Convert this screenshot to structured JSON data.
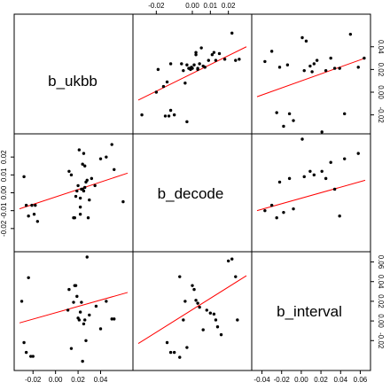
{
  "chart_data": {
    "type": "scatter",
    "variables": [
      "b_ukbb",
      "b_decode",
      "b_interval"
    ],
    "fit_line_color": "#ff0000",
    "point_color": "#000000",
    "axes": {
      "b_ukbb": {
        "ticks": [
          -0.02,
          0.0,
          0.02,
          0.04
        ],
        "tick_labels": [
          "-0.02",
          "0.00",
          "0.02",
          "0.04"
        ],
        "range": [
          -0.032,
          0.064
        ]
      },
      "b_decode": {
        "ticks": [
          -0.02,
          -0.01,
          0.0,
          0.01,
          0.02
        ],
        "tick_labels": [
          "-0.02",
          "0.00",
          "0.01",
          "0.02"
        ],
        "tick_label_values": [
          -0.02,
          0.0,
          0.01,
          0.02
        ],
        "left_tick_values": [
          -0.01,
          0.01
        ],
        "left_tick_labels": [
          "-0.01",
          "0.01"
        ],
        "left_tick_values_full": [
          -0.01,
          0.0,
          0.01,
          0.02
        ],
        "left_tick_labels_full": [
          "-0.01",
          "0.00",
          "0.01",
          "0.02"
        ],
        "range": [
          -0.03,
          0.03
        ]
      },
      "b_interval": {
        "ticks": [
          -0.04,
          -0.02,
          0.0,
          0.02,
          0.04,
          0.06
        ],
        "tick_labels": [
          "-0.04",
          "-0.02",
          "0.00",
          "0.02",
          "0.04",
          "0.06"
        ],
        "range": [
          -0.045,
          0.065
        ]
      }
    },
    "top_axis": {
      "ticks": [
        -0.02,
        0.0,
        0.01,
        0.02
      ],
      "tick_labels": [
        "-0.02",
        "0.00",
        "0.01",
        "0.02"
      ]
    },
    "right_axis_top": {
      "ticks": [
        -0.02,
        0.0,
        0.02,
        0.04
      ],
      "tick_labels": [
        "-0.02",
        "0.00",
        "0.02",
        "0.04"
      ]
    },
    "left_axis_middle": {
      "ticks": [
        -0.02,
        -0.01,
        0.0,
        0.01,
        0.02
      ],
      "tick_labels": [
        "-0.02",
        "-0.01",
        "0.00",
        "0.01",
        "0.02"
      ]
    },
    "bottom_axis_left": {
      "ticks": [
        -0.02,
        0.0,
        0.02,
        0.04
      ],
      "tick_labels": [
        "-0.02",
        "0.00",
        "0.02",
        "0.04"
      ]
    },
    "bottom_axis_right": {
      "ticks": [
        -0.04,
        -0.02,
        0.0,
        0.02,
        0.04,
        0.06
      ],
      "tick_labels": [
        "-0.04",
        "-0.02",
        "0.00",
        "0.02",
        "0.04",
        "0.06"
      ]
    },
    "right_axis_bottom": {
      "ticks": [
        -0.02,
        0.0,
        0.02,
        0.04,
        0.06
      ],
      "tick_labels": [
        "-0.02",
        "0.00",
        "0.02",
        "0.04",
        "0.06"
      ]
    },
    "panels": [
      {
        "row": 0,
        "col": 1,
        "x_var": "b_decode",
        "y_var": "b_ukbb",
        "x": [
          -0.028,
          -0.02,
          -0.019,
          -0.016,
          -0.014,
          -0.015,
          -0.013,
          -0.012,
          -0.012,
          -0.01,
          -0.006,
          -0.005,
          -0.004,
          -0.003,
          -0.002,
          -0.0015,
          -0.001,
          -0.0005,
          0.0,
          0.001,
          0.002,
          0.002,
          0.003,
          0.003,
          0.004,
          0.005,
          0.006,
          0.007,
          0.009,
          0.011,
          0.012,
          0.013,
          0.015,
          0.018,
          0.022,
          0.024,
          0.026,
          -0.003
        ],
        "y": [
          -0.02,
          0.0,
          0.02,
          0.005,
          0.009,
          -0.021,
          -0.021,
          0.025,
          -0.016,
          -0.02,
          0.025,
          0.019,
          0.008,
          0.024,
          0.021,
          0.021,
          0.02,
          0.022,
          0.021,
          0.024,
          0.033,
          0.035,
          0.021,
          0.02,
          0.025,
          0.039,
          0.023,
          0.022,
          0.028,
          0.033,
          0.035,
          0.028,
          0.034,
          0.029,
          0.052,
          0.028,
          0.029,
          -0.026
        ],
        "fit": {
          "x": [
            -0.03,
            0.03
          ],
          "y": [
            -0.007,
            0.04
          ]
        }
      },
      {
        "row": 0,
        "col": 2,
        "x_var": "b_interval",
        "y_var": "b_ukbb",
        "x": [
          -0.037,
          -0.03,
          -0.025,
          -0.022,
          -0.018,
          -0.012,
          -0.008,
          0.001,
          0.003,
          0.005,
          0.009,
          0.011,
          0.013,
          0.016,
          0.021,
          0.025,
          0.03,
          0.034,
          0.039,
          0.044,
          0.05,
          0.058,
          0.064,
          -0.014
        ],
        "y": [
          0.027,
          0.036,
          -0.018,
          0.022,
          -0.03,
          -0.019,
          -0.025,
          0.048,
          0.019,
          0.045,
          0.023,
          0.018,
          0.025,
          0.028,
          -0.035,
          0.019,
          0.03,
          0.021,
          0.021,
          -0.019,
          0.051,
          0.022,
          0.03,
          0.024
        ],
        "fit": {
          "x": [
            -0.045,
            0.065
          ],
          "y": [
            -0.004,
            0.03
          ]
        }
      },
      {
        "row": 1,
        "col": 0,
        "x_var": "b_ukbb",
        "y_var": "b_decode",
        "x": [
          -0.028,
          -0.026,
          -0.024,
          -0.021,
          -0.019,
          -0.018,
          -0.016,
          0.012,
          0.014,
          0.016,
          0.017,
          0.018,
          0.019,
          0.02,
          0.021,
          0.022,
          0.022,
          0.023,
          0.024,
          0.025,
          0.025,
          0.026,
          0.026,
          0.027,
          0.028,
          0.029,
          0.03,
          0.032,
          0.035,
          0.04,
          0.045,
          0.05,
          0.052,
          0.06,
          0.022,
          0.024
        ],
        "y": [
          0.009,
          -0.007,
          -0.013,
          -0.007,
          -0.012,
          -0.007,
          -0.016,
          0.012,
          0.01,
          -0.014,
          -0.014,
          -0.002,
          0.001,
          0.004,
          0.024,
          -0.008,
          -0.003,
          0.002,
          0.016,
          0.001,
          0.022,
          0.015,
          0.003,
          0.006,
          0.007,
          -0.014,
          -0.004,
          0.008,
          0.004,
          0.019,
          0.02,
          0.027,
          0.013,
          -0.005,
          -0.012,
          0.002
        ],
        "fit": {
          "x": [
            -0.032,
            0.064
          ],
          "y": [
            -0.009,
            0.011
          ]
        }
      },
      {
        "row": 1,
        "col": 2,
        "x_var": "b_interval",
        "y_var": "b_decode",
        "x": [
          -0.037,
          -0.03,
          -0.025,
          -0.022,
          -0.018,
          -0.012,
          -0.008,
          0.001,
          0.003,
          0.009,
          0.013,
          0.021,
          0.025,
          0.03,
          0.034,
          0.039,
          0.044,
          0.058
        ],
        "y": [
          -0.01,
          -0.007,
          -0.014,
          0.006,
          -0.011,
          0.008,
          -0.009,
          0.03,
          0.009,
          0.012,
          0.01,
          0.012,
          0.008,
          0.017,
          0.002,
          -0.013,
          0.019,
          0.022
        ],
        "fit": {
          "x": [
            -0.045,
            0.065
          ],
          "y": [
            -0.01,
            0.007
          ]
        }
      },
      {
        "row": 2,
        "col": 0,
        "x_var": "b_ukbb",
        "y_var": "b_interval",
        "x": [
          -0.03,
          -0.028,
          -0.026,
          -0.024,
          -0.022,
          -0.02,
          0.011,
          0.012,
          0.014,
          0.016,
          0.017,
          0.018,
          0.019,
          0.02,
          0.021,
          0.022,
          0.023,
          0.024,
          0.025,
          0.026,
          0.027,
          0.028,
          0.03,
          0.036,
          0.04,
          0.045,
          0.05,
          0.052
        ],
        "y": [
          0.02,
          -0.022,
          -0.032,
          0.044,
          -0.036,
          -0.036,
          0.011,
          0.032,
          -0.028,
          0.019,
          0.036,
          0.036,
          0.025,
          0.003,
          0.001,
          0.009,
          0.019,
          -0.041,
          -0.003,
          0.001,
          -0.02,
          0.065,
          0.006,
          0.015,
          -0.008,
          0.02,
          0.002,
          0.002
        ],
        "fit": {
          "x": [
            -0.032,
            0.064
          ],
          "y": [
            -0.002,
            0.029
          ]
        }
      },
      {
        "row": 2,
        "col": 1,
        "x_var": "b_decode",
        "y_var": "b_interval",
        "x": [
          -0.014,
          -0.012,
          -0.01,
          -0.007,
          -0.007,
          -0.005,
          -0.004,
          -0.003,
          0.0,
          0.001,
          0.002,
          0.003,
          0.004,
          0.006,
          0.008,
          0.01,
          0.012,
          0.013,
          0.014,
          0.016,
          0.02,
          0.022,
          0.024,
          0.025
        ],
        "y": [
          -0.022,
          -0.032,
          -0.032,
          0.045,
          -0.037,
          0.001,
          0.02,
          -0.027,
          0.036,
          0.032,
          0.021,
          0.018,
          0.014,
          -0.009,
          0.011,
          0.008,
          0.007,
          0.001,
          -0.006,
          -0.014,
          0.061,
          0.063,
          0.045,
          0.001
        ],
        "fit": {
          "x": [
            -0.03,
            0.03
          ],
          "y": [
            -0.023,
            0.046
          ]
        }
      }
    ]
  }
}
